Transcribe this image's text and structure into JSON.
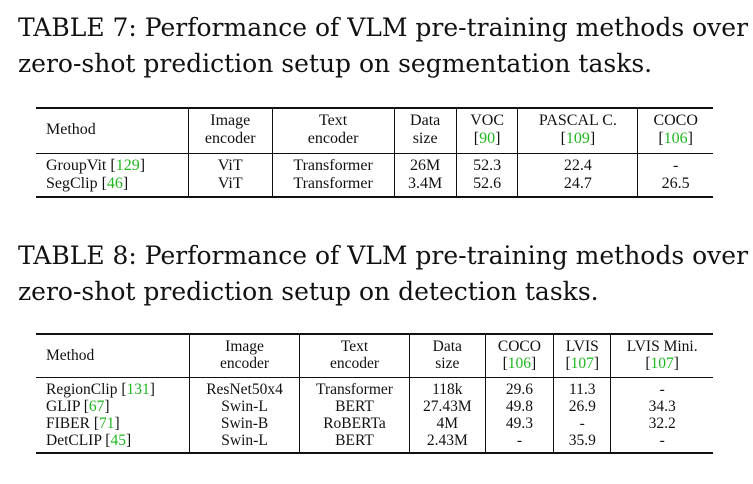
{
  "table7": {
    "caption": "TABLE 7: Performance of VLM pre-training methods over zero-shot prediction setup on segmentation tasks.",
    "caption_line1": "TABLE 7: Performance of VLM pre-training methods over",
    "caption_line2": "zero-shot prediction setup on segmentation tasks.",
    "headers": {
      "method": "Method",
      "image_encoder": [
        "Image",
        "encoder"
      ],
      "text_encoder": [
        "Text",
        "encoder"
      ],
      "data_size": [
        "Data",
        "size"
      ],
      "voc": {
        "label": "VOC",
        "ref": "90"
      },
      "pascal": {
        "label": "PASCAL C.",
        "ref": "109"
      },
      "coco": {
        "label": "COCO",
        "ref": "106"
      }
    },
    "rows": [
      {
        "method": "GroupVit",
        "ref": "129",
        "image_encoder": "ViT",
        "text_encoder": "Transformer",
        "data_size": "26M",
        "voc": "52.3",
        "pascal": "22.4",
        "coco": "-"
      },
      {
        "method": "SegClip",
        "ref": "46",
        "image_encoder": "ViT",
        "text_encoder": "Transformer",
        "data_size": "3.4M",
        "voc": "52.6",
        "pascal": "24.7",
        "coco": "26.5"
      }
    ]
  },
  "table8": {
    "caption": "TABLE 8: Performance of VLM pre-training methods over zero-shot prediction setup on detection tasks.",
    "caption_line1": "TABLE 8: Performance of VLM pre-training methods over",
    "caption_line2": "zero-shot prediction setup on detection tasks.",
    "headers": {
      "method": "Method",
      "image_encoder": [
        "Image",
        "encoder"
      ],
      "text_encoder": [
        "Text",
        "encoder"
      ],
      "data_size": [
        "Data",
        "size"
      ],
      "coco": {
        "label": "COCO",
        "ref": "106"
      },
      "lvis": {
        "label": "LVIS",
        "ref": "107"
      },
      "lvis_mini": {
        "label": "LVIS Mini.",
        "ref": "107"
      }
    },
    "rows": [
      {
        "method": "RegionClip",
        "ref": "131",
        "image_encoder": "ResNet50x4",
        "text_encoder": "Transformer",
        "data_size": "118k",
        "coco": "29.6",
        "lvis": "11.3",
        "lvis_mini": "-"
      },
      {
        "method": "GLIP",
        "ref": "67",
        "image_encoder": "Swin-L",
        "text_encoder": "BERT",
        "data_size": "27.43M",
        "coco": "49.8",
        "lvis": "26.9",
        "lvis_mini": "34.3"
      },
      {
        "method": "FIBER",
        "ref": "71",
        "image_encoder": "Swin-B",
        "text_encoder": "RoBERTa",
        "data_size": "4M",
        "coco": "49.3",
        "lvis": "-",
        "lvis_mini": "32.2"
      },
      {
        "method": "DetCLIP",
        "ref": "45",
        "image_encoder": "Swin-L",
        "text_encoder": "BERT",
        "data_size": "2.43M",
        "coco": "-",
        "lvis": "35.9",
        "lvis_mini": "-"
      }
    ]
  },
  "colors": {
    "text": "#111111",
    "citation": "#1fb81f",
    "background": "#ffffff"
  }
}
